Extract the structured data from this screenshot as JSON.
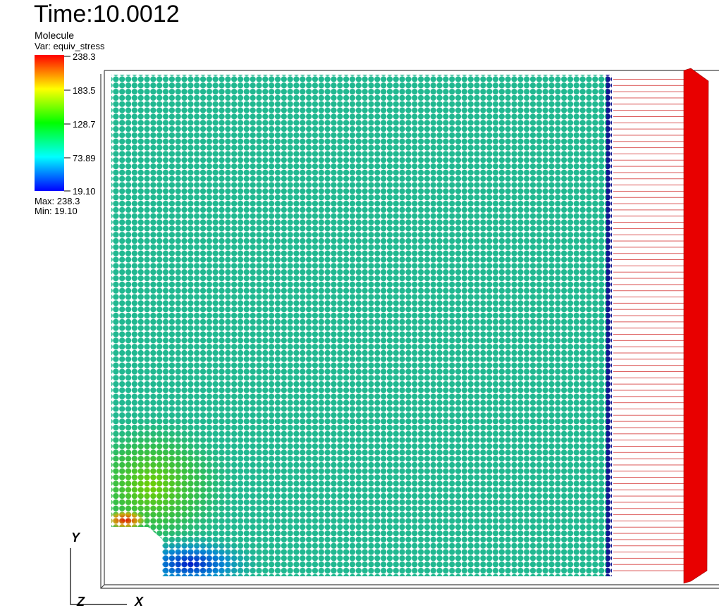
{
  "header": {
    "title": "Time:10.0012"
  },
  "legend": {
    "plot": "Molecule",
    "variable": "Var: equiv_stress",
    "ticks": [
      "238.3",
      "183.5",
      "128.7",
      "73.89",
      "19.10"
    ],
    "max": "Max:  238.3",
    "min": "Min:  19.10"
  },
  "axes": {
    "y": "Y",
    "z": "Z",
    "x": "X"
  }
}
